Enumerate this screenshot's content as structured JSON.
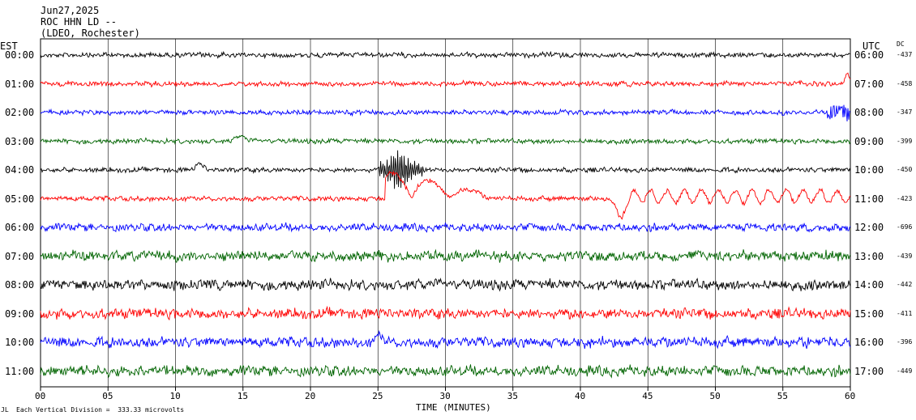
{
  "header": {
    "date": "Jun27,2025",
    "station": "ROC HHN LD --",
    "network": "(LDEO, Rochester)"
  },
  "left_axis_title": "EST",
  "right_axis_title": "UTC",
  "dc_title": "DC",
  "footer": {
    "note_mark": "JL",
    "scale_note": "Each Vertical Division =  333.33 microvolts"
  },
  "colors": {
    "palette": [
      "#000000",
      "#ff0000",
      "#0000ff",
      "#006400"
    ],
    "grid": "#000000"
  },
  "chart_data": {
    "type": "line",
    "title": "ROC HHN LD --",
    "xlabel": "TIME (MINUTES)",
    "ylabel": "",
    "xlim": [
      0,
      60
    ],
    "x_ticks": [
      "00",
      "05",
      "10",
      "15",
      "20",
      "25",
      "30",
      "35",
      "40",
      "45",
      "50",
      "55",
      "60"
    ],
    "grid": "vertical lines every 5 minutes",
    "series": [
      {
        "est": "00:00",
        "utc": "06:00",
        "dc": "-437",
        "color": "black",
        "amplitude": "low",
        "events": []
      },
      {
        "est": "01:00",
        "utc": "07:00",
        "dc": "-458",
        "color": "red",
        "amplitude": "low",
        "events": [
          {
            "minute": 59.8,
            "kind": "upward spike"
          }
        ]
      },
      {
        "est": "02:00",
        "utc": "08:00",
        "dc": "-347",
        "color": "blue",
        "amplitude": "low",
        "events": [
          {
            "minute": 59.5,
            "kind": "noise burst"
          }
        ]
      },
      {
        "est": "03:00",
        "utc": "09:00",
        "dc": "-399",
        "color": "green",
        "amplitude": "low",
        "events": [
          {
            "minute": 14.8,
            "kind": "small spike"
          }
        ]
      },
      {
        "est": "04:00",
        "utc": "10:00",
        "dc": "-450",
        "color": "black",
        "amplitude": "low",
        "events": [
          {
            "minute": 11.8,
            "kind": "bump"
          },
          {
            "minute": 26.5,
            "kind": "large oscillation (earthquake)"
          }
        ]
      },
      {
        "est": "05:00",
        "utc": "11:00",
        "dc": "-423",
        "color": "red",
        "amplitude": "low",
        "events": [
          {
            "minute": 27.5,
            "kind": "large swings"
          },
          {
            "minute": 43.0,
            "kind": "dip then oscillation"
          }
        ]
      },
      {
        "est": "06:00",
        "utc": "12:00",
        "dc": "-696",
        "color": "blue",
        "amplitude": "medium",
        "events": []
      },
      {
        "est": "07:00",
        "utc": "13:00",
        "dc": "-439",
        "color": "green",
        "amplitude": "high",
        "events": []
      },
      {
        "est": "08:00",
        "utc": "14:00",
        "dc": "-442",
        "color": "black",
        "amplitude": "high",
        "events": []
      },
      {
        "est": "09:00",
        "utc": "15:00",
        "dc": "-411",
        "color": "red",
        "amplitude": "high",
        "events": []
      },
      {
        "est": "10:00",
        "utc": "16:00",
        "dc": "-396",
        "color": "blue",
        "amplitude": "high",
        "events": [
          {
            "minute": 25.0,
            "kind": "step"
          }
        ]
      },
      {
        "est": "11:00",
        "utc": "17:00",
        "dc": "-449",
        "color": "green",
        "amplitude": "high",
        "events": []
      }
    ]
  }
}
